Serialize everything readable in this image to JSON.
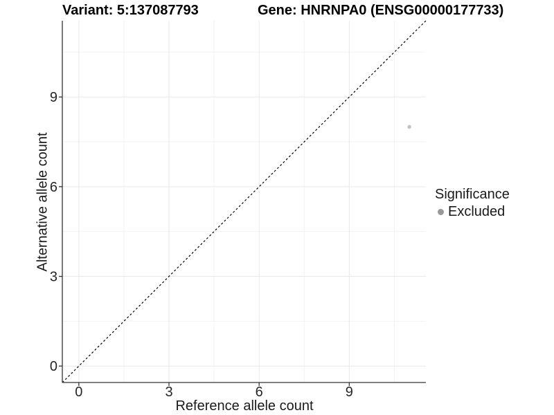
{
  "chart_data": {
    "type": "scatter",
    "titles": {
      "left": "Variant: 5:137087793",
      "right": "Gene: HNRNPA0 (ENSG00000177733)"
    },
    "xlabel": "Reference allele count",
    "ylabel": "Alternative allele count",
    "xlim": [
      -0.55,
      11.55
    ],
    "ylim": [
      -0.55,
      11.55
    ],
    "xticks": [
      0,
      3,
      6,
      9
    ],
    "yticks": [
      0,
      3,
      6,
      9
    ],
    "x_minor_ticks": [
      1.5,
      4.5,
      7.5,
      10.5
    ],
    "y_minor_ticks": [
      1.5,
      4.5,
      7.5,
      10.5
    ],
    "grid": true,
    "series": [
      {
        "name": "Excluded",
        "color": "#c4c4c4",
        "point_radius": 2.8,
        "points": [
          [
            11,
            8
          ]
        ]
      }
    ],
    "reference_line": {
      "slope": 1,
      "intercept": 0,
      "style": "dashed",
      "color": "#000000"
    },
    "legend": {
      "title": "Significance",
      "position": "right",
      "items": [
        {
          "label": "Excluded",
          "color": "#999999"
        }
      ]
    },
    "colors": {
      "background": "#ffffff",
      "axis_line": "#333333",
      "tick_label": "#262626",
      "grid_major": "#e8e8e8",
      "grid_minor": "#f2f2f2"
    }
  }
}
